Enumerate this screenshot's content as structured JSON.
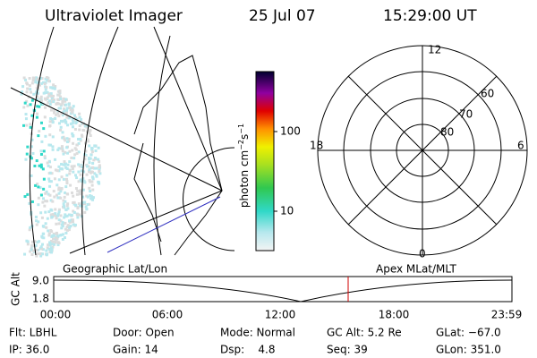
{
  "header": {
    "title": "Ultraviolet Imager",
    "date": "25 Jul 07",
    "time": "15:29:00 UT"
  },
  "colorbar": {
    "unit": "photon cm",
    "exp1": "−2",
    "unit2": "s",
    "exp2": "−1",
    "ticks": [
      "100",
      "10"
    ]
  },
  "polar": {
    "labels": [
      "12",
      "18",
      "6",
      "0",
      "60",
      "70",
      "80"
    ]
  },
  "panel_labels": {
    "left": "Geographic Lat/Lon",
    "right": "Apex MLat/MLT"
  },
  "altitude_plot": {
    "ylabel": "GC Alt",
    "yticks": [
      "9.0",
      "1.8"
    ],
    "xticks": [
      "00:00",
      "06:00",
      "12:00",
      "18:00",
      "23:59"
    ]
  },
  "footer": {
    "rows": [
      [
        "Flt: LBHL",
        "Door: Open",
        "Mode: Normal",
        "GC Alt: 5.2 Re",
        "GLat: −67.0"
      ],
      [
        "IP: 36.0",
        "Gain: 14",
        "Dsp:    4.8",
        "Seq: 39",
        "GLon: 351.0"
      ]
    ]
  }
}
